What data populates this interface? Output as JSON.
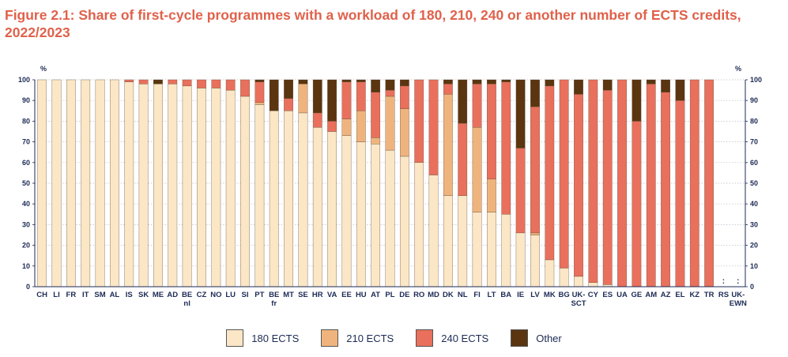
{
  "figure": {
    "title": "Figure 2.1: Share of first-cycle programmes with a workload of 180, 210, 240 or another number of ECTS credits, 2022/2023"
  },
  "chart_data": {
    "type": "bar",
    "stacked": true,
    "title": "Figure 2.1: Share of first-cycle programmes with a workload of 180, 210, 240 or another number of ECTS credits, 2022/2023",
    "ylabel": "%",
    "ylabel_right": "%",
    "ylim": [
      0,
      100
    ],
    "yticks": [
      "0",
      "10",
      "20",
      "30",
      "40",
      "50",
      "60",
      "70",
      "80",
      "90",
      "100"
    ],
    "yticks_right": [
      "0",
      "10",
      "20",
      "30",
      "40",
      "50",
      "60",
      "70",
      "80",
      "90",
      "100"
    ],
    "grid": true,
    "legend_position": "bottom",
    "categories": [
      [
        "CH"
      ],
      [
        "LI"
      ],
      [
        "FR"
      ],
      [
        "IT"
      ],
      [
        "SM"
      ],
      [
        "AL"
      ],
      [
        "IS"
      ],
      [
        "SK"
      ],
      [
        "ME"
      ],
      [
        "AD"
      ],
      [
        "BE",
        "nl"
      ],
      [
        "CZ"
      ],
      [
        "NO"
      ],
      [
        "LU"
      ],
      [
        "SI"
      ],
      [
        "PT"
      ],
      [
        "BE",
        "fr"
      ],
      [
        "MT"
      ],
      [
        "SE"
      ],
      [
        "HR"
      ],
      [
        "VA"
      ],
      [
        "EE"
      ],
      [
        "HU"
      ],
      [
        "AT"
      ],
      [
        "PL"
      ],
      [
        "DE"
      ],
      [
        "RO"
      ],
      [
        "MD"
      ],
      [
        "DK"
      ],
      [
        "NL"
      ],
      [
        "FI"
      ],
      [
        "LT"
      ],
      [
        "BA"
      ],
      [
        "IE"
      ],
      [
        "LV"
      ],
      [
        "MK"
      ],
      [
        "BG"
      ],
      [
        "UK-",
        "SCT"
      ],
      [
        "CY"
      ],
      [
        "ES"
      ],
      [
        "UA"
      ],
      [
        "GE"
      ],
      [
        "AM"
      ],
      [
        "AZ"
      ],
      [
        "EL"
      ],
      [
        "KZ"
      ],
      [
        "TR"
      ],
      [
        "RS"
      ],
      [
        "UK-",
        "EWN"
      ]
    ],
    "series": [
      {
        "name": "180 ECTS",
        "color": "#fbe6c6",
        "values": [
          100,
          100,
          100,
          100,
          100,
          100,
          99,
          98,
          98,
          98,
          97,
          96,
          96,
          95,
          92,
          88,
          85,
          85,
          84,
          77,
          75,
          73,
          70,
          69,
          66,
          63,
          60,
          54,
          44,
          44,
          36,
          36,
          35,
          26,
          25,
          13,
          9,
          5,
          2,
          1,
          0,
          0,
          0,
          0,
          0,
          0,
          0,
          null,
          null
        ]
      },
      {
        "name": "210 ECTS",
        "color": "#efb47e",
        "values": [
          0,
          0,
          0,
          0,
          0,
          0,
          0,
          0,
          0,
          0,
          0,
          0,
          0,
          0,
          0,
          1,
          0,
          0,
          14,
          0,
          0,
          8,
          15,
          3,
          26,
          23,
          0,
          0,
          49,
          0,
          41,
          16,
          0,
          0,
          1,
          0,
          0,
          0,
          0,
          0,
          0,
          0,
          0,
          0,
          0,
          0,
          0,
          null,
          null
        ]
      },
      {
        "name": "240 ECTS",
        "color": "#e9705c",
        "values": [
          0,
          0,
          0,
          0,
          0,
          0,
          1,
          2,
          0,
          2,
          3,
          4,
          4,
          5,
          8,
          10,
          0,
          6,
          0,
          7,
          5,
          18,
          14,
          22,
          3,
          11,
          40,
          46,
          5,
          35,
          21,
          46,
          64,
          41,
          61,
          84,
          91,
          88,
          98,
          94,
          100,
          80,
          98,
          94,
          90,
          100,
          100,
          null,
          null
        ]
      },
      {
        "name": "Other",
        "color": "#5a3510",
        "values": [
          0,
          0,
          0,
          0,
          0,
          0,
          0,
          0,
          2,
          0,
          0,
          0,
          0,
          0,
          0,
          1,
          15,
          9,
          2,
          16,
          20,
          1,
          1,
          6,
          5,
          3,
          0,
          0,
          2,
          21,
          2,
          2,
          1,
          33,
          13,
          3,
          0,
          7,
          0,
          5,
          0,
          20,
          2,
          6,
          10,
          0,
          0,
          null,
          null
        ]
      }
    ],
    "not_available_marker": ":",
    "not_available_categories": [
      "RS",
      "UK-EWN"
    ]
  },
  "legend": {
    "items": [
      {
        "label": "180 ECTS",
        "color": "#fbe6c6"
      },
      {
        "label": "210 ECTS",
        "color": "#efb47e"
      },
      {
        "label": "240 ECTS",
        "color": "#e9705c"
      },
      {
        "label": "Other",
        "color": "#5a3510"
      }
    ]
  }
}
